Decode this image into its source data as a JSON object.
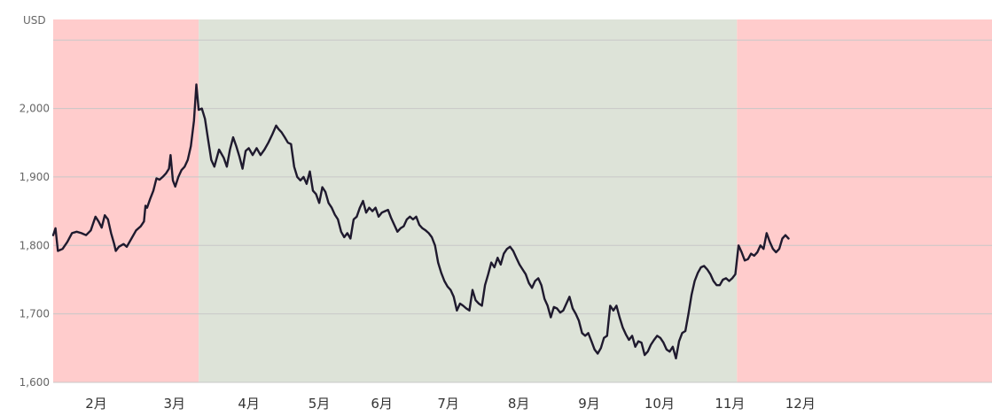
{
  "chart_data": {
    "type": "line",
    "title": "",
    "xlabel": "",
    "ylabel": "USD",
    "ylim": [
      1600,
      2130
    ],
    "y_ticks": [
      {
        "value": 1600,
        "label": "1,600"
      },
      {
        "value": 1700,
        "label": "1,700"
      },
      {
        "value": 1800,
        "label": "1,800"
      },
      {
        "value": 1900,
        "label": "1,900"
      },
      {
        "value": 2000,
        "label": "2,000"
      }
    ],
    "x_range": [
      0,
      12
    ],
    "months": [
      {
        "label": "2月",
        "x": 0.55
      },
      {
        "label": "3月",
        "x": 1.55
      },
      {
        "label": "4月",
        "x": 2.5
      },
      {
        "label": "5月",
        "x": 3.4
      },
      {
        "label": "6月",
        "x": 4.2
      },
      {
        "label": "7月",
        "x": 5.05
      },
      {
        "label": "8月",
        "x": 5.95
      },
      {
        "label": "9月",
        "x": 6.85
      },
      {
        "label": "10月",
        "x": 7.75
      },
      {
        "label": "11月",
        "x": 8.65
      },
      {
        "label": "12月",
        "x": 9.55
      }
    ],
    "shaded_regions": [
      {
        "from": 0,
        "to": 1.86,
        "color": "#ffcccc"
      },
      {
        "from": 1.86,
        "to": 8.74,
        "color": "#dde3d8"
      },
      {
        "from": 8.74,
        "to": 12,
        "color": "#ffcccc"
      }
    ],
    "grid": true,
    "line_color": "#1f1a2e",
    "series": [
      {
        "values": [
          [
            0.0,
            1815
          ],
          [
            0.03,
            1825
          ],
          [
            0.06,
            1792
          ],
          [
            0.12,
            1795
          ],
          [
            0.18,
            1805
          ],
          [
            0.24,
            1818
          ],
          [
            0.3,
            1820
          ],
          [
            0.36,
            1818
          ],
          [
            0.42,
            1815
          ],
          [
            0.48,
            1822
          ],
          [
            0.54,
            1842
          ],
          [
            0.58,
            1835
          ],
          [
            0.62,
            1826
          ],
          [
            0.66,
            1844
          ],
          [
            0.7,
            1838
          ],
          [
            0.74,
            1818
          ],
          [
            0.78,
            1802
          ],
          [
            0.8,
            1792
          ],
          [
            0.84,
            1798
          ],
          [
            0.9,
            1802
          ],
          [
            0.94,
            1798
          ],
          [
            1.0,
            1810
          ],
          [
            1.06,
            1822
          ],
          [
            1.12,
            1828
          ],
          [
            1.16,
            1835
          ],
          [
            1.18,
            1858
          ],
          [
            1.2,
            1855
          ],
          [
            1.24,
            1868
          ],
          [
            1.28,
            1880
          ],
          [
            1.32,
            1898
          ],
          [
            1.36,
            1896
          ],
          [
            1.4,
            1900
          ],
          [
            1.44,
            1905
          ],
          [
            1.48,
            1912
          ],
          [
            1.5,
            1932
          ],
          [
            1.53,
            1895
          ],
          [
            1.56,
            1886
          ],
          [
            1.6,
            1900
          ],
          [
            1.64,
            1910
          ],
          [
            1.68,
            1915
          ],
          [
            1.72,
            1925
          ],
          [
            1.76,
            1945
          ],
          [
            1.8,
            1982
          ],
          [
            1.83,
            2035
          ],
          [
            1.86,
            1998
          ],
          [
            1.9,
            2000
          ],
          [
            1.94,
            1985
          ],
          [
            1.98,
            1955
          ],
          [
            2.02,
            1925
          ],
          [
            2.06,
            1915
          ],
          [
            2.12,
            1940
          ],
          [
            2.18,
            1928
          ],
          [
            2.22,
            1915
          ],
          [
            2.26,
            1940
          ],
          [
            2.3,
            1958
          ],
          [
            2.34,
            1945
          ],
          [
            2.38,
            1930
          ],
          [
            2.42,
            1912
          ],
          [
            2.46,
            1938
          ],
          [
            2.5,
            1942
          ],
          [
            2.55,
            1932
          ],
          [
            2.6,
            1942
          ],
          [
            2.65,
            1932
          ],
          [
            2.7,
            1940
          ],
          [
            2.75,
            1950
          ],
          [
            2.8,
            1962
          ],
          [
            2.85,
            1975
          ],
          [
            2.88,
            1970
          ],
          [
            2.92,
            1965
          ],
          [
            2.96,
            1958
          ],
          [
            3.0,
            1950
          ],
          [
            3.04,
            1948
          ],
          [
            3.08,
            1915
          ],
          [
            3.12,
            1900
          ],
          [
            3.16,
            1895
          ],
          [
            3.2,
            1900
          ],
          [
            3.24,
            1890
          ],
          [
            3.28,
            1908
          ],
          [
            3.32,
            1880
          ],
          [
            3.36,
            1875
          ],
          [
            3.4,
            1862
          ],
          [
            3.44,
            1885
          ],
          [
            3.48,
            1878
          ],
          [
            3.52,
            1862
          ],
          [
            3.56,
            1855
          ],
          [
            3.6,
            1845
          ],
          [
            3.64,
            1838
          ],
          [
            3.68,
            1820
          ],
          [
            3.72,
            1812
          ],
          [
            3.76,
            1818
          ],
          [
            3.8,
            1810
          ],
          [
            3.84,
            1838
          ],
          [
            3.88,
            1842
          ],
          [
            3.92,
            1855
          ],
          [
            3.96,
            1865
          ],
          [
            4.0,
            1848
          ],
          [
            4.04,
            1855
          ],
          [
            4.08,
            1850
          ],
          [
            4.12,
            1855
          ],
          [
            4.16,
            1842
          ],
          [
            4.2,
            1848
          ],
          [
            4.24,
            1850
          ],
          [
            4.28,
            1852
          ],
          [
            4.32,
            1840
          ],
          [
            4.36,
            1830
          ],
          [
            4.4,
            1820
          ],
          [
            4.44,
            1825
          ],
          [
            4.48,
            1828
          ],
          [
            4.52,
            1838
          ],
          [
            4.56,
            1842
          ],
          [
            4.6,
            1838
          ],
          [
            4.64,
            1842
          ],
          [
            4.68,
            1830
          ],
          [
            4.72,
            1825
          ],
          [
            4.76,
            1822
          ],
          [
            4.8,
            1818
          ],
          [
            4.84,
            1812
          ],
          [
            4.88,
            1800
          ],
          [
            4.92,
            1775
          ],
          [
            4.96,
            1760
          ],
          [
            5.0,
            1748
          ],
          [
            5.04,
            1740
          ],
          [
            5.08,
            1735
          ],
          [
            5.12,
            1725
          ],
          [
            5.16,
            1705
          ],
          [
            5.2,
            1715
          ],
          [
            5.24,
            1712
          ],
          [
            5.28,
            1708
          ],
          [
            5.32,
            1705
          ],
          [
            5.36,
            1735
          ],
          [
            5.4,
            1720
          ],
          [
            5.44,
            1715
          ],
          [
            5.48,
            1712
          ],
          [
            5.52,
            1742
          ],
          [
            5.56,
            1758
          ],
          [
            5.6,
            1775
          ],
          [
            5.64,
            1768
          ],
          [
            5.68,
            1782
          ],
          [
            5.72,
            1772
          ],
          [
            5.76,
            1788
          ],
          [
            5.8,
            1795
          ],
          [
            5.84,
            1798
          ],
          [
            5.88,
            1792
          ],
          [
            5.92,
            1782
          ],
          [
            5.96,
            1772
          ],
          [
            6.0,
            1765
          ],
          [
            6.04,
            1758
          ],
          [
            6.08,
            1745
          ],
          [
            6.12,
            1738
          ],
          [
            6.16,
            1748
          ],
          [
            6.2,
            1752
          ],
          [
            6.24,
            1742
          ],
          [
            6.28,
            1722
          ],
          [
            6.32,
            1712
          ],
          [
            6.36,
            1695
          ],
          [
            6.4,
            1710
          ],
          [
            6.44,
            1708
          ],
          [
            6.48,
            1702
          ],
          [
            6.52,
            1705
          ],
          [
            6.56,
            1715
          ],
          [
            6.6,
            1725
          ],
          [
            6.64,
            1708
          ],
          [
            6.68,
            1700
          ],
          [
            6.72,
            1690
          ],
          [
            6.76,
            1672
          ],
          [
            6.8,
            1668
          ],
          [
            6.84,
            1672
          ],
          [
            6.88,
            1660
          ],
          [
            6.92,
            1648
          ],
          [
            6.96,
            1642
          ],
          [
            7.0,
            1650
          ],
          [
            7.04,
            1665
          ],
          [
            7.08,
            1668
          ],
          [
            7.12,
            1712
          ],
          [
            7.16,
            1705
          ],
          [
            7.2,
            1712
          ],
          [
            7.24,
            1695
          ],
          [
            7.28,
            1680
          ],
          [
            7.32,
            1670
          ],
          [
            7.36,
            1662
          ],
          [
            7.4,
            1668
          ],
          [
            7.44,
            1652
          ],
          [
            7.48,
            1660
          ],
          [
            7.52,
            1658
          ],
          [
            7.56,
            1640
          ],
          [
            7.6,
            1645
          ],
          [
            7.64,
            1655
          ],
          [
            7.68,
            1662
          ],
          [
            7.72,
            1668
          ],
          [
            7.76,
            1665
          ],
          [
            7.8,
            1658
          ],
          [
            7.84,
            1648
          ],
          [
            7.88,
            1645
          ],
          [
            7.92,
            1652
          ],
          [
            7.96,
            1635
          ],
          [
            8.0,
            1660
          ],
          [
            8.04,
            1672
          ],
          [
            8.08,
            1675
          ],
          [
            8.12,
            1700
          ],
          [
            8.16,
            1728
          ],
          [
            8.2,
            1748
          ],
          [
            8.24,
            1760
          ],
          [
            8.28,
            1768
          ],
          [
            8.32,
            1770
          ],
          [
            8.36,
            1765
          ],
          [
            8.4,
            1758
          ],
          [
            8.44,
            1748
          ],
          [
            8.48,
            1742
          ],
          [
            8.52,
            1742
          ],
          [
            8.56,
            1750
          ],
          [
            8.6,
            1752
          ],
          [
            8.64,
            1748
          ],
          [
            8.68,
            1752
          ],
          [
            8.72,
            1758
          ],
          [
            8.76,
            1800
          ],
          [
            8.8,
            1790
          ],
          [
            8.84,
            1778
          ],
          [
            8.88,
            1780
          ],
          [
            8.92,
            1788
          ],
          [
            8.96,
            1785
          ],
          [
            9.0,
            1790
          ],
          [
            9.04,
            1800
          ],
          [
            9.08,
            1795
          ],
          [
            9.12,
            1818
          ],
          [
            9.16,
            1805
          ],
          [
            9.2,
            1795
          ],
          [
            9.24,
            1790
          ],
          [
            9.28,
            1795
          ],
          [
            9.32,
            1810
          ],
          [
            9.36,
            1815
          ],
          [
            9.4,
            1810
          ]
        ]
      }
    ]
  }
}
